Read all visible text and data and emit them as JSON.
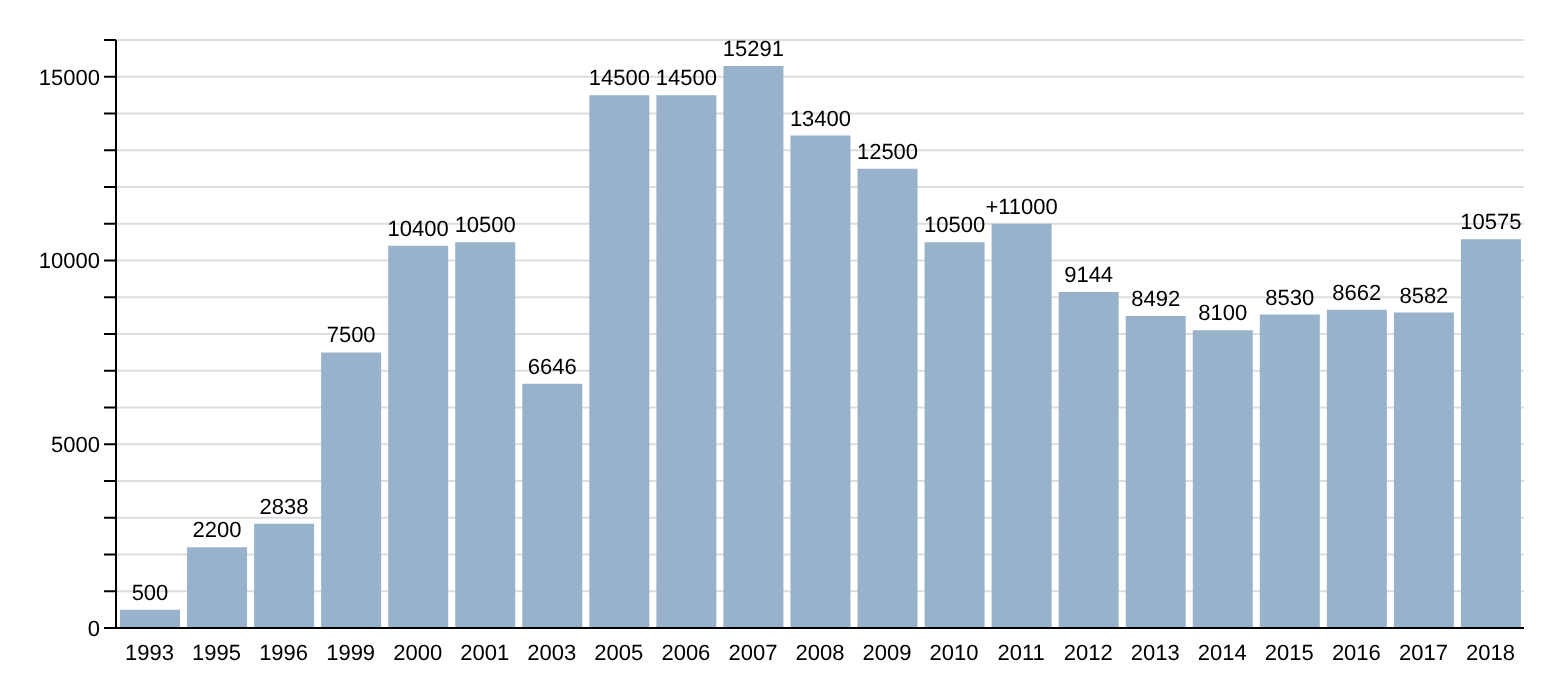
{
  "chart_data": {
    "type": "bar",
    "categories": [
      "1993",
      "1995",
      "1996",
      "1999",
      "2000",
      "2001",
      "2003",
      "2005",
      "2006",
      "2007",
      "2008",
      "2009",
      "2010",
      "2011",
      "2012",
      "2013",
      "2014",
      "2015",
      "2016",
      "2017",
      "2018"
    ],
    "values": [
      500,
      2200,
      2838,
      7500,
      10400,
      10500,
      6646,
      14500,
      14500,
      15291,
      13400,
      12500,
      10500,
      11000,
      9144,
      8492,
      8100,
      8530,
      8662,
      8582,
      10575
    ],
    "value_labels": [
      "500",
      "2200",
      "2838",
      "7500",
      "10400",
      "10500",
      "6646",
      "14500",
      "14500",
      "15291",
      "13400",
      "12500",
      "10500",
      "+11000",
      "9144",
      "8492",
      "8100",
      "8530",
      "8662",
      "8582",
      "10575"
    ],
    "color": "#98b2cc",
    "ylim": [
      0,
      16000
    ],
    "yticks": [
      0,
      {
        "value": 1000,
        "label": null
      },
      {
        "value": 2000,
        "label": null
      },
      {
        "value": 3000,
        "label": null
      },
      {
        "value": 4000,
        "label": null
      },
      5000,
      {
        "value": 6000,
        "label": null
      },
      {
        "value": 7000,
        "label": null
      },
      {
        "value": 8000,
        "label": null
      },
      {
        "value": 9000,
        "label": null
      },
      10000,
      {
        "value": 11000,
        "label": null
      },
      {
        "value": 12000,
        "label": null
      },
      {
        "value": 13000,
        "label": null
      },
      {
        "value": 14000,
        "label": null
      },
      15000,
      {
        "value": 16000,
        "label": null
      }
    ],
    "grid": "y"
  }
}
